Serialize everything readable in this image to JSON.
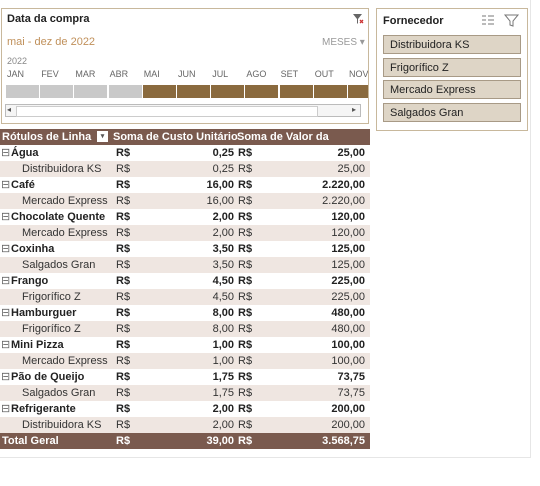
{
  "timeline": {
    "title": "Data da compra",
    "range": "mai - dez de 2022",
    "level": "MESES",
    "year": "2022",
    "months": [
      "JAN",
      "FEV",
      "MAR",
      "ABR",
      "MAI",
      "JUN",
      "JUL",
      "AGO",
      "SET",
      "OUT",
      "NOV"
    ]
  },
  "slicer": {
    "title": "Fornecedor",
    "items": [
      "Distribuidora KS",
      "Frigorífico Z",
      "Mercado Express",
      "Salgados Gran"
    ]
  },
  "pivot": {
    "headers": [
      "Rótulos de Linha",
      "Soma de Custo Unitário",
      "Soma de Valor da Compra"
    ],
    "currency": "R$",
    "groups": [
      {
        "name": "Água",
        "cost": "0,25",
        "value": "25,00",
        "children": [
          {
            "name": "Distribuidora KS",
            "cost": "0,25",
            "value": "25,00"
          }
        ]
      },
      {
        "name": "Café",
        "cost": "16,00",
        "value": "2.220,00",
        "children": [
          {
            "name": "Mercado Express",
            "cost": "16,00",
            "value": "2.220,00"
          }
        ]
      },
      {
        "name": "Chocolate Quente",
        "cost": "2,00",
        "value": "120,00",
        "children": [
          {
            "name": "Mercado Express",
            "cost": "2,00",
            "value": "120,00"
          }
        ]
      },
      {
        "name": "Coxinha",
        "cost": "3,50",
        "value": "125,00",
        "children": [
          {
            "name": "Salgados Gran",
            "cost": "3,50",
            "value": "125,00"
          }
        ]
      },
      {
        "name": "Frango",
        "cost": "4,50",
        "value": "225,00",
        "children": [
          {
            "name": "Frigorífico Z",
            "cost": "4,50",
            "value": "225,00"
          }
        ]
      },
      {
        "name": "Hamburguer",
        "cost": "8,00",
        "value": "480,00",
        "children": [
          {
            "name": "Frigorífico Z",
            "cost": "8,00",
            "value": "480,00"
          }
        ]
      },
      {
        "name": "Mini Pizza",
        "cost": "1,00",
        "value": "100,00",
        "children": [
          {
            "name": "Mercado Express",
            "cost": "1,00",
            "value": "100,00"
          }
        ]
      },
      {
        "name": "Pão de Queijo",
        "cost": "1,75",
        "value": "73,75",
        "children": [
          {
            "name": "Salgados Gran",
            "cost": "1,75",
            "value": "73,75"
          }
        ]
      },
      {
        "name": "Refrigerante",
        "cost": "2,00",
        "value": "200,00",
        "children": [
          {
            "name": "Distribuidora KS",
            "cost": "2,00",
            "value": "200,00"
          }
        ]
      }
    ],
    "total": {
      "name": "Total Geral",
      "cost": "39,00",
      "value": "3.568,75"
    }
  }
}
